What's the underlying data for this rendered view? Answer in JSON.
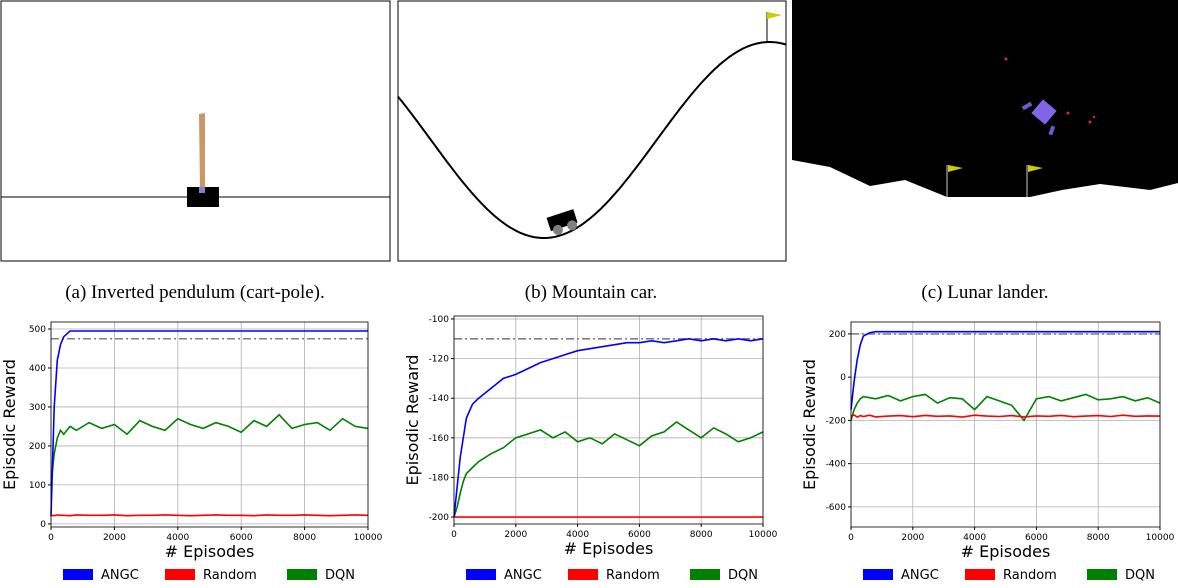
{
  "panels": [
    {
      "caption": "(a) Inverted pendulum (cart-pole)."
    },
    {
      "caption": "(b) Mountain car."
    },
    {
      "caption": "(c) Lunar lander."
    }
  ],
  "chart_data": [
    {
      "type": "line",
      "x_label": "# Episodes",
      "y_label": "Episodic Reward",
      "x": [
        0,
        100,
        200,
        300,
        400,
        600,
        800,
        1200,
        1600,
        2000,
        2400,
        2800,
        3200,
        3600,
        4000,
        4400,
        4800,
        5200,
        5600,
        6000,
        6400,
        6800,
        7200,
        7600,
        8000,
        8400,
        8800,
        9200,
        9600,
        10000
      ],
      "xlim": [
        0,
        10000
      ],
      "xticks": [
        0,
        2000,
        4000,
        6000,
        8000,
        10000
      ],
      "ylim": [
        -8,
        518
      ],
      "yticks": [
        0,
        100,
        200,
        300,
        400,
        500
      ],
      "grid": true,
      "legend": "below",
      "reference_line": 475,
      "series": [
        {
          "name": "ANGC",
          "color": "#0000ff",
          "values": [
            20,
            300,
            420,
            460,
            480,
            495,
            495,
            495,
            495,
            495,
            495,
            495,
            495,
            495,
            495,
            495,
            495,
            495,
            495,
            495,
            495,
            495,
            495,
            495,
            495,
            495,
            495,
            495,
            495,
            495
          ]
        },
        {
          "name": "Random",
          "color": "#ff0000",
          "values": [
            22,
            21,
            23,
            22,
            22,
            21,
            23,
            22,
            22,
            23,
            21,
            22,
            22,
            23,
            22,
            21,
            22,
            23,
            22,
            22,
            21,
            23,
            22,
            22,
            23,
            22,
            21,
            22,
            23,
            22
          ]
        },
        {
          "name": "DQN",
          "color": "#008000",
          "values": [
            100,
            180,
            220,
            240,
            230,
            250,
            240,
            260,
            245,
            255,
            230,
            265,
            250,
            240,
            270,
            255,
            245,
            260,
            250,
            235,
            265,
            250,
            280,
            245,
            255,
            260,
            240,
            270,
            250,
            245
          ]
        }
      ]
    },
    {
      "type": "line",
      "x_label": "# Episodes",
      "y_label": "Episodic Reward",
      "x": [
        0,
        100,
        200,
        300,
        400,
        600,
        800,
        1200,
        1600,
        2000,
        2400,
        2800,
        3200,
        3600,
        4000,
        4400,
        4800,
        5200,
        5600,
        6000,
        6400,
        6800,
        7200,
        7600,
        8000,
        8400,
        8800,
        9200,
        9600,
        10000
      ],
      "xlim": [
        0,
        10000
      ],
      "xticks": [
        0,
        2000,
        4000,
        6000,
        8000,
        10000
      ],
      "ylim": [
        -203.5,
        -98.5
      ],
      "yticks": [
        -200,
        -180,
        -160,
        -140,
        -120,
        -100
      ],
      "grid": true,
      "legend": "below",
      "reference_line": -110,
      "series": [
        {
          "name": "ANGC",
          "color": "#0000ff",
          "values": [
            -200,
            -185,
            -170,
            -160,
            -150,
            -143,
            -140,
            -135,
            -130,
            -128,
            -125,
            -122,
            -120,
            -118,
            -116,
            -115,
            -114,
            -113,
            -112,
            -112,
            -111,
            -112,
            -111,
            -110,
            -111,
            -110,
            -111,
            -110,
            -111,
            -110
          ]
        },
        {
          "name": "Random",
          "color": "#ff0000",
          "values": [
            -200,
            -200,
            -200,
            -200,
            -200,
            -200,
            -200,
            -200,
            -200,
            -200,
            -200,
            -200,
            -200,
            -200,
            -200,
            -200,
            -200,
            -200,
            -200,
            -200,
            -200,
            -200,
            -200,
            -200,
            -200,
            -200,
            -200,
            -200,
            -200,
            -200
          ]
        },
        {
          "name": "DQN",
          "color": "#008000",
          "values": [
            -200,
            -195,
            -188,
            -182,
            -178,
            -175,
            -172,
            -168,
            -165,
            -160,
            -158,
            -156,
            -160,
            -157,
            -162,
            -160,
            -163,
            -158,
            -161,
            -164,
            -159,
            -157,
            -152,
            -156,
            -160,
            -155,
            -158,
            -162,
            -160,
            -157
          ]
        }
      ]
    },
    {
      "type": "line",
      "x_label": "# Episodes",
      "y_label": "Episodic Reward",
      "x": [
        0,
        100,
        200,
        300,
        400,
        600,
        800,
        1200,
        1600,
        2000,
        2400,
        2800,
        3200,
        3600,
        4000,
        4400,
        4800,
        5200,
        5600,
        6000,
        6400,
        6800,
        7200,
        7600,
        8000,
        8400,
        8800,
        9200,
        9600,
        10000
      ],
      "xlim": [
        0,
        10000
      ],
      "xticks": [
        0,
        2000,
        4000,
        6000,
        8000,
        10000
      ],
      "ylim": [
        -693,
        255
      ],
      "yticks": [
        -600,
        -400,
        -200,
        0,
        200
      ],
      "grid": true,
      "legend": "below",
      "reference_line": 200,
      "series": [
        {
          "name": "ANGC",
          "color": "#0000ff",
          "values": [
            -150,
            -20,
            80,
            150,
            190,
            205,
            210,
            210,
            210,
            210,
            210,
            210,
            210,
            210,
            210,
            210,
            210,
            210,
            210,
            210,
            210,
            210,
            210,
            210,
            210,
            210,
            210,
            210,
            210,
            210
          ]
        },
        {
          "name": "Random",
          "color": "#ff0000",
          "values": [
            -180,
            -175,
            -185,
            -178,
            -182,
            -176,
            -184,
            -180,
            -178,
            -183,
            -177,
            -181,
            -179,
            -185,
            -176,
            -180,
            -182,
            -178,
            -184,
            -179,
            -181,
            -177,
            -183,
            -180,
            -178,
            -182,
            -176,
            -181,
            -179,
            -180
          ]
        },
        {
          "name": "DQN",
          "color": "#008000",
          "values": [
            -200,
            -150,
            -120,
            -100,
            -90,
            -95,
            -100,
            -85,
            -110,
            -90,
            -80,
            -120,
            -95,
            -100,
            -150,
            -90,
            -110,
            -130,
            -200,
            -100,
            -90,
            -110,
            -95,
            -80,
            -105,
            -100,
            -90,
            -110,
            -95,
            -120
          ]
        }
      ]
    }
  ]
}
